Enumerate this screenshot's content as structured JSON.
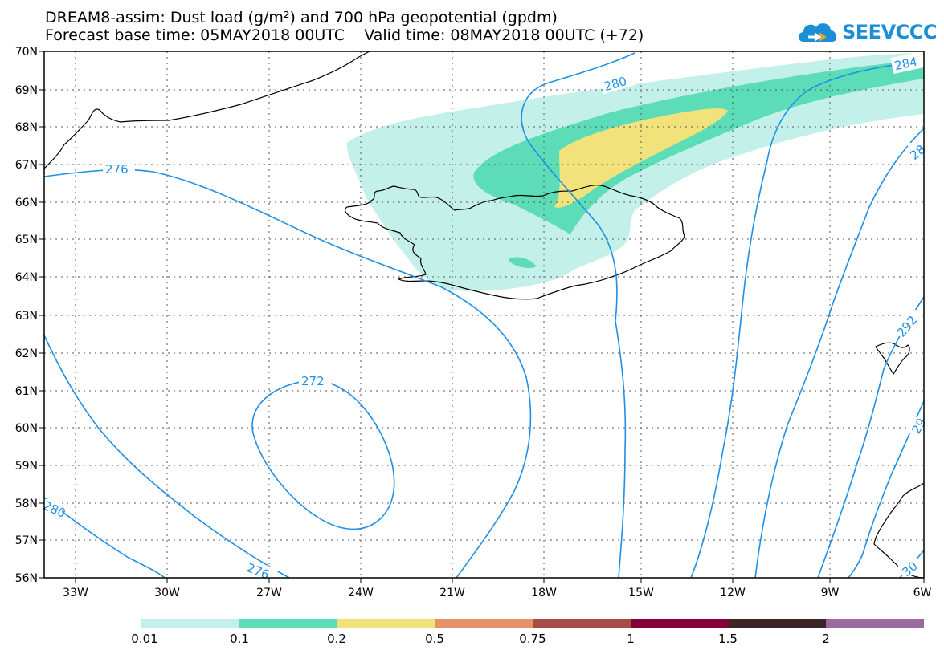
{
  "title_line1": "DREAM8-assim: Dust load (g/m²) and 700 hPa geopotential (gpdm)",
  "title_line2": "Forecast base time: 05MAY2018 00UTC    Valid time: 08MAY2018 00UTC (+72)",
  "logo": {
    "text": "SEEVCCC",
    "icon": "cloud-icon",
    "color": "#1b8fd6"
  },
  "map": {
    "lat_range": [
      56,
      70
    ],
    "lon_range": [
      -34.5,
      -6
    ],
    "lat_labels": [
      "70N",
      "69N",
      "68N",
      "67N",
      "66N",
      "65N",
      "64N",
      "63N",
      "62N",
      "61N",
      "60N",
      "59N",
      "58N",
      "57N",
      "56N"
    ],
    "lon_labels": [
      "33W",
      "30W",
      "27W",
      "24W",
      "21W",
      "18W",
      "15W",
      "12W",
      "9W",
      "6W"
    ],
    "contour_labels": [
      "276",
      "272",
      "280",
      "276",
      "280",
      "284",
      "28",
      "292",
      "29",
      "30"
    ],
    "contour_color": "#1e90e6",
    "dust_colors": [
      "#c3f1ea",
      "#5cddb8",
      "#f2e27b"
    ]
  },
  "legend": {
    "colors": [
      "#c3f1ea",
      "#5cddb8",
      "#f2e27b",
      "#e89068",
      "#a84c48",
      "#84003a",
      "#3a2426",
      "#9a6aa0"
    ],
    "labels": [
      "0.01",
      "0.1",
      "0.2",
      "0.5",
      "0.75",
      "1",
      "1.5",
      "2"
    ]
  }
}
